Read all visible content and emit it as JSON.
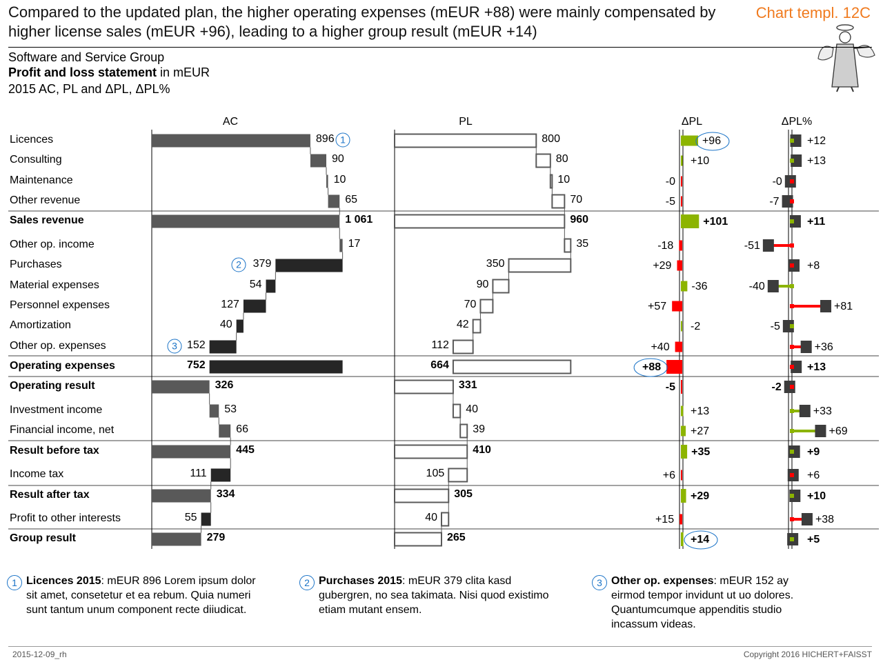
{
  "headline": "Compared to the updated plan, the higher operating expenses (mEUR +88) were mainly compensated by higher license sales (mEUR +96), leading to a higher group result (mEUR +14)",
  "template_label": "Chart templ. 12C",
  "subtitle": {
    "line1": "Software and Service Group",
    "line2_bold": "Profit and loss statement",
    "line2_rest": " in mEUR",
    "line3": "2015 AC, PL and ΔPL, ΔPL%"
  },
  "colors": {
    "ac_bar": "#595959",
    "ac_expense": "#262626",
    "pl_outline": "#595959",
    "positive": "#8cb400",
    "negative": "#ff0000",
    "marker": "#3c3c3c",
    "callout": "#1a73c7",
    "accent": "#f07a1e"
  },
  "chart_data": {
    "type": "bar",
    "subtype": "waterfall-variance-table",
    "columns": [
      "AC",
      "PL",
      "ΔPL",
      "ΔPL%"
    ],
    "rows": [
      {
        "label": "Licences",
        "kind": "rev",
        "bold": false,
        "ac": 896,
        "pl": 800,
        "dpl": "+96",
        "dplv": 96,
        "dpct": "+12",
        "dpctv": 12,
        "dpl_good": true,
        "dpct_good": true,
        "ac_note": "1",
        "dpl_circle": true
      },
      {
        "label": "Consulting",
        "kind": "rev",
        "bold": false,
        "ac": 90,
        "pl": 80,
        "dpl": "+10",
        "dplv": 10,
        "dpct": "+13",
        "dpctv": 13,
        "dpl_good": true,
        "dpct_good": true
      },
      {
        "label": "Maintenance",
        "kind": "rev",
        "bold": false,
        "ac": 10,
        "pl": 10,
        "dpl": "-0",
        "dplv": -0.3,
        "dpct": "-0",
        "dpctv": -0.3,
        "dpl_good": false,
        "dpct_good": false
      },
      {
        "label": "Other revenue",
        "kind": "rev",
        "bold": false,
        "ac": 65,
        "pl": 70,
        "dpl": "-5",
        "dplv": -5,
        "dpct": "-7",
        "dpctv": -7,
        "dpl_good": false,
        "dpct_good": false
      },
      {
        "label": "Sales revenue",
        "kind": "total",
        "bold": true,
        "ac": "1 061",
        "acv": 1061,
        "pl": 960,
        "dpl": "+101",
        "dplv": 101,
        "dpct": "+11",
        "dpctv": 11,
        "dpl_good": true,
        "dpct_good": true
      },
      {
        "label": "Other op. income",
        "kind": "rev2",
        "bold": false,
        "ac": 17,
        "pl": 35,
        "dpl": "-18",
        "dplv": -18,
        "dpct": "-51",
        "dpctv": -51,
        "dpl_good": false,
        "dpct_good": false
      },
      {
        "label": "Purchases",
        "kind": "exp",
        "bold": false,
        "ac": 379,
        "pl": 350,
        "dpl": "+29",
        "dplv": 29,
        "dpct": "+8",
        "dpctv": 8,
        "dpl_good": false,
        "dpct_good": false,
        "ac_note": "2"
      },
      {
        "label": "Material expenses",
        "kind": "exp",
        "bold": false,
        "ac": 54,
        "pl": 90,
        "dpl": "-36",
        "dplv": -36,
        "dpct": "-40",
        "dpctv": -40,
        "dpl_good": true,
        "dpct_good": true
      },
      {
        "label": "Personnel expenses",
        "kind": "exp",
        "bold": false,
        "ac": 127,
        "pl": 70,
        "dpl": "+57",
        "dplv": 57,
        "dpct": "+81",
        "dpctv": 81,
        "dpl_good": false,
        "dpct_good": false
      },
      {
        "label": "Amortization",
        "kind": "exp",
        "bold": false,
        "ac": 40,
        "pl": 42,
        "dpl": "-2",
        "dplv": -2,
        "dpct": "-5",
        "dpctv": -5,
        "dpl_good": true,
        "dpct_good": true
      },
      {
        "label": "Other op. expenses",
        "kind": "exp",
        "bold": false,
        "ac": 152,
        "pl": 112,
        "dpl": "+40",
        "dplv": 40,
        "dpct": "+36",
        "dpctv": 36,
        "dpl_good": false,
        "dpct_good": false,
        "ac_note": "3"
      },
      {
        "label": "Operating expenses",
        "kind": "exptotal",
        "bold": true,
        "ac": 752,
        "pl": 664,
        "dpl": "+88",
        "dplv": 88,
        "dpct": "+13",
        "dpctv": 13,
        "dpl_good": false,
        "dpct_good": false,
        "dpl_circle": true
      },
      {
        "label": "Operating result",
        "kind": "total",
        "bold": true,
        "ac": 326,
        "pl": 331,
        "dpl": "-5",
        "dplv": -5,
        "dpct": "-2",
        "dpctv": -2,
        "dpl_good": false,
        "dpct_good": false
      },
      {
        "label": "Investment  income",
        "kind": "rev",
        "bold": false,
        "ac": 53,
        "pl": 40,
        "dpl": "+13",
        "dplv": 13,
        "dpct": "+33",
        "dpctv": 33,
        "dpl_good": true,
        "dpct_good": true
      },
      {
        "label": "Financial income, net",
        "kind": "rev",
        "bold": false,
        "ac": 66,
        "pl": 39,
        "dpl": "+27",
        "dplv": 27,
        "dpct": "+69",
        "dpctv": 69,
        "dpl_good": true,
        "dpct_good": true
      },
      {
        "label": "Result before tax",
        "kind": "total",
        "bold": true,
        "ac": 445,
        "pl": 410,
        "dpl": "+35",
        "dplv": 35,
        "dpct": "+9",
        "dpctv": 9,
        "dpl_good": true,
        "dpct_good": true
      },
      {
        "label": "Income tax",
        "kind": "exp",
        "bold": false,
        "ac": 111,
        "pl": 105,
        "dpl": "+6",
        "dplv": 6,
        "dpct": "+6",
        "dpctv": 6,
        "dpl_good": false,
        "dpct_good": false
      },
      {
        "label": "Result after tax",
        "kind": "total",
        "bold": true,
        "ac": 334,
        "pl": 305,
        "dpl": "+29",
        "dplv": 29,
        "dpct": "+10",
        "dpctv": 10,
        "dpl_good": true,
        "dpct_good": true
      },
      {
        "label": "Profit to other interests",
        "kind": "exp",
        "bold": false,
        "ac": 55,
        "pl": 40,
        "dpl": "+15",
        "dplv": 15,
        "dpct": "+38",
        "dpctv": 38,
        "dpl_good": false,
        "dpct_good": false
      },
      {
        "label": "Group result",
        "kind": "total",
        "bold": true,
        "ac": 279,
        "pl": 265,
        "dpl": "+14",
        "dplv": 14,
        "dpct": "+5",
        "dpctv": 5,
        "dpl_good": true,
        "dpct_good": true,
        "dpl_circle": true
      }
    ]
  },
  "footnotes": [
    {
      "num": "1",
      "bold": "Licences 2015",
      "text": ": mEUR 896 Lorem ipsum dolor sit amet, consetetur et ea rebum. Quia numeri sunt tantum unum component recte diiudicat."
    },
    {
      "num": "2",
      "bold": "Purchases 2015",
      "text": ": mEUR 379 clita kasd gubergren, no sea takimata. Nisi quod existimo etiam mutant ensem."
    },
    {
      "num": "3",
      "bold": "Other op. expenses",
      "text": ": mEUR 152 ay eirmod tempor invidunt ut uo dolores. Quantumcumque appenditis studio incassum videas."
    }
  ],
  "footer": {
    "left": "2015-12-09_rh",
    "right": "Copyright 2016 HICHERT+FAISST"
  }
}
